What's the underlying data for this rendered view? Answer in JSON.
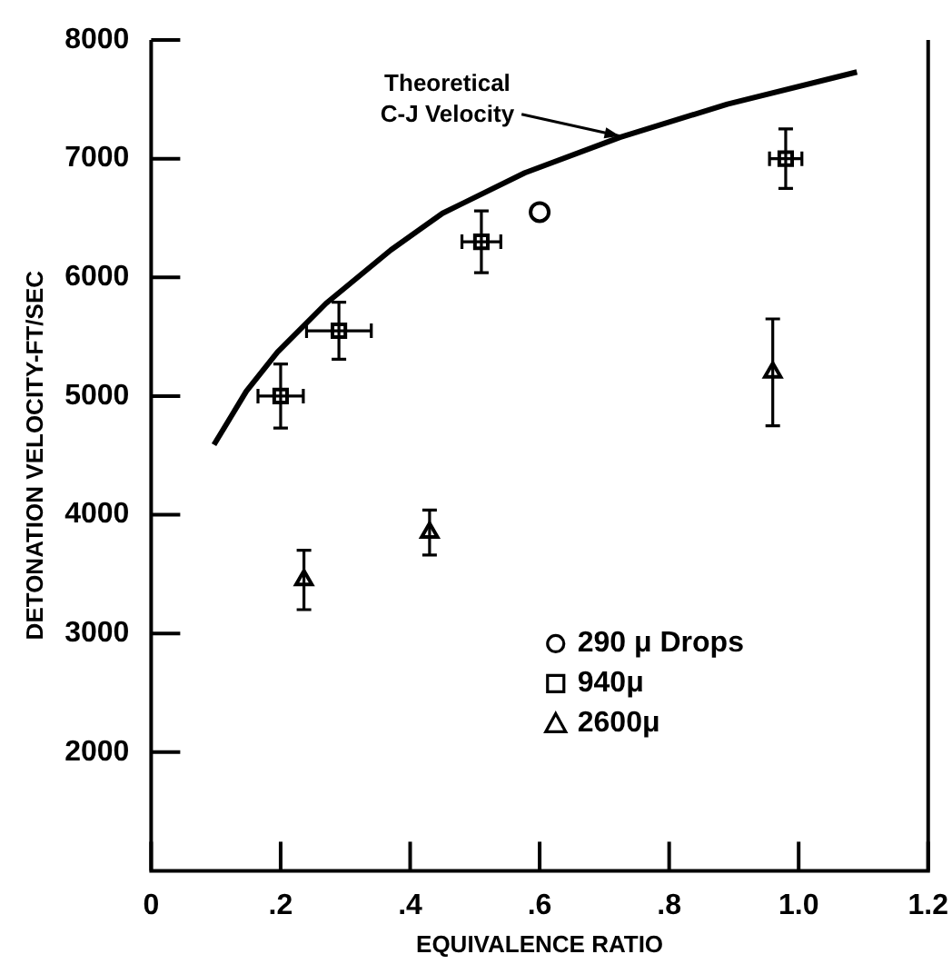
{
  "chart_data": {
    "type": "scatter",
    "xlabel": "EQUIVALENCE RATIO",
    "ylabel": "DETONATION VELOCITY-FT/SEC",
    "xlim": [
      0,
      1.2
    ],
    "xticks": [
      0,
      {
        "value": 0.2,
        "label": ".2"
      },
      {
        "value": 0.4,
        "label": ".4"
      },
      {
        "value": 0.6,
        "label": ".6"
      },
      {
        "value": 0.8,
        "label": ".8"
      },
      {
        "value": 1.0,
        "label": "1.0"
      },
      {
        "value": 1.2,
        "label": "1.2"
      }
    ],
    "ylim": [
      1000,
      8000
    ],
    "yticks": [
      2000,
      3000,
      4000,
      5000,
      6000,
      7000,
      8000
    ],
    "grid": false,
    "legend": "bottom right",
    "series": [
      {
        "type": "line",
        "color": "#000000",
        "marker": "none",
        "x": [
          0.097,
          0.147,
          0.195,
          0.27,
          0.37,
          0.45,
          0.577,
          0.724,
          0.89,
          1.09
        ],
        "values": [
          4590,
          5040,
          5370,
          5780,
          6230,
          6540,
          6880,
          7180,
          7460,
          7730
        ]
      },
      {
        "name": "290 μ Drops",
        "color": "#000000",
        "marker": "circle",
        "x": [
          0.6
        ],
        "values": [
          6550
        ]
      },
      {
        "name": "940μ",
        "color": "#000000",
        "marker": "square",
        "x": [
          0.2,
          0.29,
          0.51,
          0.98
        ],
        "values": [
          5000,
          5550,
          6300,
          7000
        ],
        "errors": [
          270,
          240,
          260,
          250
        ],
        "xerrors": [
          0.035,
          0.05,
          0.03,
          0.025
        ]
      },
      {
        "name": "2600μ",
        "color": "#000000",
        "marker": "triangle",
        "x": [
          0.236,
          0.43,
          0.96
        ],
        "values": [
          3450,
          3850,
          5200
        ],
        "errors": [
          250,
          190,
          450
        ]
      }
    ],
    "annotations": [
      {
        "text": "Theoretical C-J Velocity",
        "x": 0.724,
        "y": 7190
      }
    ]
  }
}
